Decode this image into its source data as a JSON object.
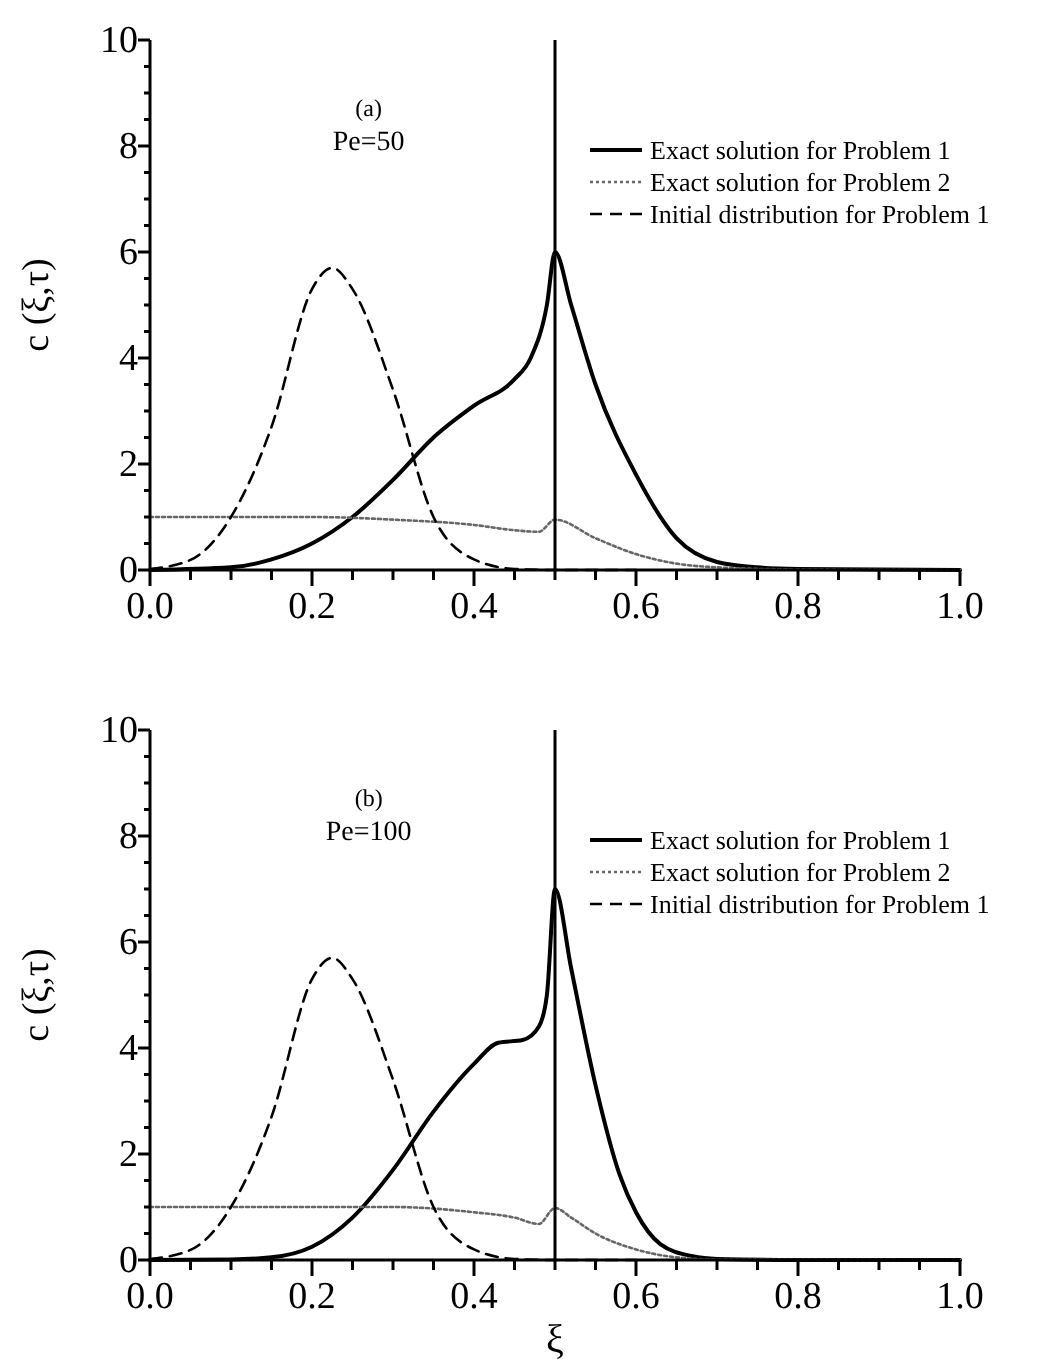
{
  "chart_data": [
    {
      "type": "line",
      "ylabel": "c (ξ,τ)",
      "annotations": [
        "(a)",
        "Pe=50"
      ],
      "xlim": [
        0,
        1
      ],
      "ylim": [
        0,
        10
      ],
      "xticks": [
        {
          "value": 0,
          "label": "0.0"
        },
        {
          "value": 0.05,
          "label": null
        },
        {
          "value": 0.1,
          "label": null
        },
        {
          "value": 0.15,
          "label": null
        },
        0.2,
        {
          "value": 0.25,
          "label": null
        },
        {
          "value": 0.3,
          "label": null
        },
        {
          "value": 0.35,
          "label": null
        },
        0.4,
        {
          "value": 0.45,
          "label": null
        },
        {
          "value": 0.5,
          "label": null
        },
        {
          "value": 0.55,
          "label": null
        },
        0.6,
        {
          "value": 0.65,
          "label": null
        },
        {
          "value": 0.7,
          "label": null
        },
        {
          "value": 0.75,
          "label": null
        },
        0.8,
        {
          "value": 0.85,
          "label": null
        },
        {
          "value": 0.9,
          "label": null
        },
        {
          "value": 0.95,
          "label": null
        },
        {
          "value": 1,
          "label": "1.0"
        }
      ],
      "yticks": [
        0,
        {
          "value": 0.5,
          "label": null
        },
        {
          "value": 1,
          "label": null
        },
        {
          "value": 1.5,
          "label": null
        },
        2,
        {
          "value": 2.5,
          "label": null
        },
        {
          "value": 3,
          "label": null
        },
        {
          "value": 3.5,
          "label": null
        },
        4,
        {
          "value": 4.5,
          "label": null
        },
        {
          "value": 5,
          "label": null
        },
        {
          "value": 5.5,
          "label": null
        },
        6,
        {
          "value": 6.5,
          "label": null
        },
        {
          "value": 7,
          "label": null
        },
        {
          "value": 7.5,
          "label": null
        },
        8,
        {
          "value": 8.5,
          "label": null
        },
        {
          "value": 9,
          "label": null
        },
        {
          "value": 9.5,
          "label": null
        },
        10
      ],
      "legend": "top right",
      "grid": false,
      "ref_lines": [
        {
          "axis": "x",
          "value": 0.5,
          "color": "#000000"
        }
      ],
      "series": [
        {
          "name": "Exact solution for Problem 1",
          "color": "#000000",
          "line_style": "solid",
          "x": [
            0,
            0.1,
            0.15,
            0.2,
            0.25,
            0.3,
            0.35,
            0.4,
            0.45,
            0.47,
            0.49,
            0.5,
            0.52,
            0.55,
            0.6,
            0.65,
            0.7,
            0.75,
            0.8,
            1.0
          ],
          "values": [
            0,
            0.05,
            0.2,
            0.5,
            1.0,
            1.7,
            2.5,
            3.1,
            3.6,
            4.0,
            5.0,
            6.0,
            5.0,
            3.5,
            1.8,
            0.6,
            0.15,
            0.05,
            0.02,
            0
          ]
        },
        {
          "name": "Exact solution for Problem 2",
          "color": "#666666",
          "line_style": "dotted",
          "x": [
            0,
            0.2,
            0.3,
            0.4,
            0.45,
            0.48,
            0.5,
            0.55,
            0.6,
            0.65,
            0.7,
            0.8,
            1.0
          ],
          "values": [
            1,
            1,
            0.95,
            0.85,
            0.75,
            0.72,
            0.95,
            0.6,
            0.3,
            0.12,
            0.05,
            0.01,
            0
          ]
        },
        {
          "name": "Initial distribution for Problem 1",
          "color": "#000000",
          "line_style": "dashed",
          "x": [
            0,
            0.05,
            0.1,
            0.15,
            0.2,
            0.225,
            0.25,
            0.3,
            0.35,
            0.4,
            0.45,
            0.5,
            0.6
          ],
          "values": [
            0.02,
            0.19,
            1.0,
            2.7,
            5.3,
            5.7,
            5.3,
            3.4,
            1.0,
            0.2,
            0.02,
            0,
            0
          ]
        }
      ]
    },
    {
      "type": "line",
      "xlabel": "ξ",
      "ylabel": "c (ξ,τ)",
      "annotations": [
        "(b)",
        "Pe=100"
      ],
      "xlim": [
        0,
        1
      ],
      "ylim": [
        0,
        10
      ],
      "xticks": [
        {
          "value": 0,
          "label": "0.0"
        },
        {
          "value": 0.05,
          "label": null
        },
        {
          "value": 0.1,
          "label": null
        },
        {
          "value": 0.15,
          "label": null
        },
        0.2,
        {
          "value": 0.25,
          "label": null
        },
        {
          "value": 0.3,
          "label": null
        },
        {
          "value": 0.35,
          "label": null
        },
        0.4,
        {
          "value": 0.45,
          "label": null
        },
        {
          "value": 0.5,
          "label": null
        },
        {
          "value": 0.55,
          "label": null
        },
        0.6,
        {
          "value": 0.65,
          "label": null
        },
        {
          "value": 0.7,
          "label": null
        },
        {
          "value": 0.75,
          "label": null
        },
        0.8,
        {
          "value": 0.85,
          "label": null
        },
        {
          "value": 0.9,
          "label": null
        },
        {
          "value": 0.95,
          "label": null
        },
        {
          "value": 1,
          "label": "1.0"
        }
      ],
      "yticks": [
        0,
        {
          "value": 0.5,
          "label": null
        },
        {
          "value": 1,
          "label": null
        },
        {
          "value": 1.5,
          "label": null
        },
        2,
        {
          "value": 2.5,
          "label": null
        },
        {
          "value": 3,
          "label": null
        },
        {
          "value": 3.5,
          "label": null
        },
        4,
        {
          "value": 4.5,
          "label": null
        },
        {
          "value": 5,
          "label": null
        },
        {
          "value": 5.5,
          "label": null
        },
        6,
        {
          "value": 6.5,
          "label": null
        },
        {
          "value": 7,
          "label": null
        },
        {
          "value": 7.5,
          "label": null
        },
        8,
        {
          "value": 8.5,
          "label": null
        },
        {
          "value": 9,
          "label": null
        },
        {
          "value": 9.5,
          "label": null
        },
        10
      ],
      "legend": "top right",
      "grid": false,
      "ref_lines": [
        {
          "axis": "x",
          "value": 0.5,
          "color": "#000000"
        }
      ],
      "series": [
        {
          "name": "Exact solution for Problem 1",
          "color": "#000000",
          "line_style": "solid",
          "x": [
            0,
            0.1,
            0.15,
            0.2,
            0.25,
            0.3,
            0.35,
            0.4,
            0.43,
            0.46,
            0.48,
            0.49,
            0.5,
            0.52,
            0.55,
            0.58,
            0.6,
            0.63,
            0.67,
            0.7,
            0.8,
            1.0
          ],
          "values": [
            0,
            0.01,
            0.05,
            0.25,
            0.8,
            1.7,
            2.8,
            3.7,
            4.1,
            4.15,
            4.4,
            5.0,
            7.0,
            5.5,
            3.3,
            1.6,
            0.9,
            0.3,
            0.07,
            0.02,
            0,
            0
          ]
        },
        {
          "name": "Exact solution for Problem 2",
          "color": "#666666",
          "line_style": "dotted",
          "x": [
            0,
            0.3,
            0.4,
            0.45,
            0.48,
            0.5,
            0.52,
            0.55,
            0.6,
            0.65,
            0.7,
            1.0
          ],
          "values": [
            1,
            1,
            0.9,
            0.8,
            0.68,
            0.98,
            0.8,
            0.5,
            0.2,
            0.05,
            0.01,
            0
          ]
        },
        {
          "name": "Initial distribution for Problem 1",
          "color": "#000000",
          "line_style": "dashed",
          "x": [
            0,
            0.05,
            0.1,
            0.15,
            0.2,
            0.225,
            0.25,
            0.3,
            0.35,
            0.4,
            0.45,
            0.5,
            0.6
          ],
          "values": [
            0.02,
            0.19,
            1.0,
            2.7,
            5.3,
            5.7,
            5.3,
            3.4,
            1.0,
            0.2,
            0.02,
            0,
            0
          ]
        }
      ]
    }
  ]
}
